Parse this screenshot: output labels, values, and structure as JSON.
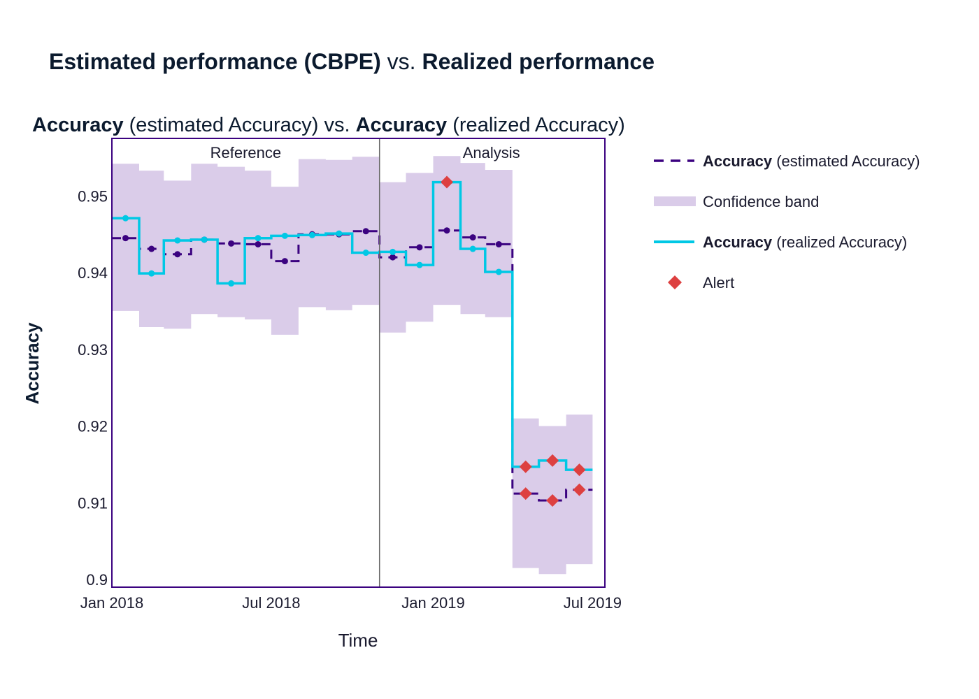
{
  "title": {
    "part1_bold": "Estimated performance (CBPE)",
    "part2": " vs. ",
    "part3_bold": "Realized performance"
  },
  "chart_data": {
    "type": "line",
    "subtitle": {
      "part1_bold": "Accuracy",
      "part2": " (estimated Accuracy) vs. ",
      "part3_bold": "Accuracy",
      "part4": " (realized Accuracy)"
    },
    "xlabel": "Time",
    "ylabel": "Accuracy",
    "x_ticks": [
      "Jan 2018",
      "Jul 2018",
      "Jan 2019",
      "Jul 2019"
    ],
    "x_tick_dates": [
      "2018-01-01",
      "2018-07-01",
      "2019-01-01",
      "2019-07-01"
    ],
    "y_ticks": [
      "0.9",
      "0.91",
      "0.92",
      "0.93",
      "0.94",
      "0.95"
    ],
    "ylim": [
      0.899,
      0.9575
    ],
    "xlim": [
      "2018-01-01",
      "2019-07-15"
    ],
    "period_boundary": "2018-11-01",
    "periods": [
      "Reference",
      "Analysis"
    ],
    "chunks": [
      {
        "start": "2018-01-01",
        "end": "2018-02-01",
        "estimated": 0.9445,
        "realized": 0.9471,
        "lower": 0.935,
        "upper": 0.9542,
        "alert_estimated": false,
        "alert_realized": false
      },
      {
        "start": "2018-02-01",
        "end": "2018-03-01",
        "estimated": 0.9431,
        "realized": 0.9399,
        "lower": 0.9329,
        "upper": 0.9533,
        "alert_estimated": false,
        "alert_realized": false
      },
      {
        "start": "2018-03-01",
        "end": "2018-04-01",
        "estimated": 0.9424,
        "realized": 0.9442,
        "lower": 0.9327,
        "upper": 0.952,
        "alert_estimated": false,
        "alert_realized": false
      },
      {
        "start": "2018-04-01",
        "end": "2018-05-01",
        "estimated": 0.9443,
        "realized": 0.9443,
        "lower": 0.9346,
        "upper": 0.9542,
        "alert_estimated": false,
        "alert_realized": false
      },
      {
        "start": "2018-05-01",
        "end": "2018-06-01",
        "estimated": 0.9438,
        "realized": 0.9386,
        "lower": 0.9342,
        "upper": 0.9538,
        "alert_estimated": false,
        "alert_realized": false
      },
      {
        "start": "2018-06-01",
        "end": "2018-07-01",
        "estimated": 0.9437,
        "realized": 0.9445,
        "lower": 0.9339,
        "upper": 0.9533,
        "alert_estimated": false,
        "alert_realized": false
      },
      {
        "start": "2018-07-01",
        "end": "2018-08-01",
        "estimated": 0.9415,
        "realized": 0.9448,
        "lower": 0.9319,
        "upper": 0.9512,
        "alert_estimated": false,
        "alert_realized": false
      },
      {
        "start": "2018-08-01",
        "end": "2018-09-01",
        "estimated": 0.945,
        "realized": 0.9449,
        "lower": 0.9355,
        "upper": 0.9548,
        "alert_estimated": false,
        "alert_realized": false
      },
      {
        "start": "2018-09-01",
        "end": "2018-10-01",
        "estimated": 0.945,
        "realized": 0.9451,
        "lower": 0.9351,
        "upper": 0.9547,
        "alert_estimated": false,
        "alert_realized": false
      },
      {
        "start": "2018-10-01",
        "end": "2018-11-01",
        "estimated": 0.9454,
        "realized": 0.9426,
        "lower": 0.9358,
        "upper": 0.9551,
        "alert_estimated": false,
        "alert_realized": false
      },
      {
        "start": "2018-11-01",
        "end": "2018-12-01",
        "estimated": 0.942,
        "realized": 0.9427,
        "lower": 0.9322,
        "upper": 0.9518,
        "alert_estimated": false,
        "alert_realized": false
      },
      {
        "start": "2018-12-01",
        "end": "2019-01-01",
        "estimated": 0.9433,
        "realized": 0.941,
        "lower": 0.9336,
        "upper": 0.953,
        "alert_estimated": false,
        "alert_realized": false
      },
      {
        "start": "2019-01-01",
        "end": "2019-02-01",
        "estimated": 0.9455,
        "realized": 0.9518,
        "lower": 0.9358,
        "upper": 0.9552,
        "alert_estimated": false,
        "alert_realized": true
      },
      {
        "start": "2019-02-01",
        "end": "2019-03-01",
        "estimated": 0.9446,
        "realized": 0.9431,
        "lower": 0.9346,
        "upper": 0.9543,
        "alert_estimated": false,
        "alert_realized": false
      },
      {
        "start": "2019-03-01",
        "end": "2019-04-01",
        "estimated": 0.9437,
        "realized": 0.9401,
        "lower": 0.9342,
        "upper": 0.9534,
        "alert_estimated": false,
        "alert_realized": false
      },
      {
        "start": "2019-04-01",
        "end": "2019-05-01",
        "estimated": 0.9112,
        "realized": 0.9147,
        "lower": 0.9015,
        "upper": 0.921,
        "alert_estimated": true,
        "alert_realized": true
      },
      {
        "start": "2019-05-01",
        "end": "2019-06-01",
        "estimated": 0.9103,
        "realized": 0.9155,
        "lower": 0.9007,
        "upper": 0.92,
        "alert_estimated": true,
        "alert_realized": true
      },
      {
        "start": "2019-06-01",
        "end": "2019-07-01",
        "estimated": 0.9117,
        "realized": 0.9143,
        "lower": 0.902,
        "upper": 0.9215,
        "alert_estimated": true,
        "alert_realized": true
      }
    ],
    "legend": {
      "placement": "right",
      "items": [
        {
          "key": "estimated",
          "bold": "Accuracy",
          "rest": " (estimated Accuracy)"
        },
        {
          "key": "band",
          "bold": "",
          "rest": "Confidence band"
        },
        {
          "key": "realized",
          "bold": "Accuracy",
          "rest": " (realized Accuracy)"
        },
        {
          "key": "alert",
          "bold": "",
          "rest": "Alert"
        }
      ]
    },
    "colors": {
      "estimated": "#3b0280",
      "realized": "#00c8e5",
      "band": "#dacce9",
      "alert": "#dd4040",
      "frame": "#3b0280",
      "boundary": "#666666"
    }
  }
}
